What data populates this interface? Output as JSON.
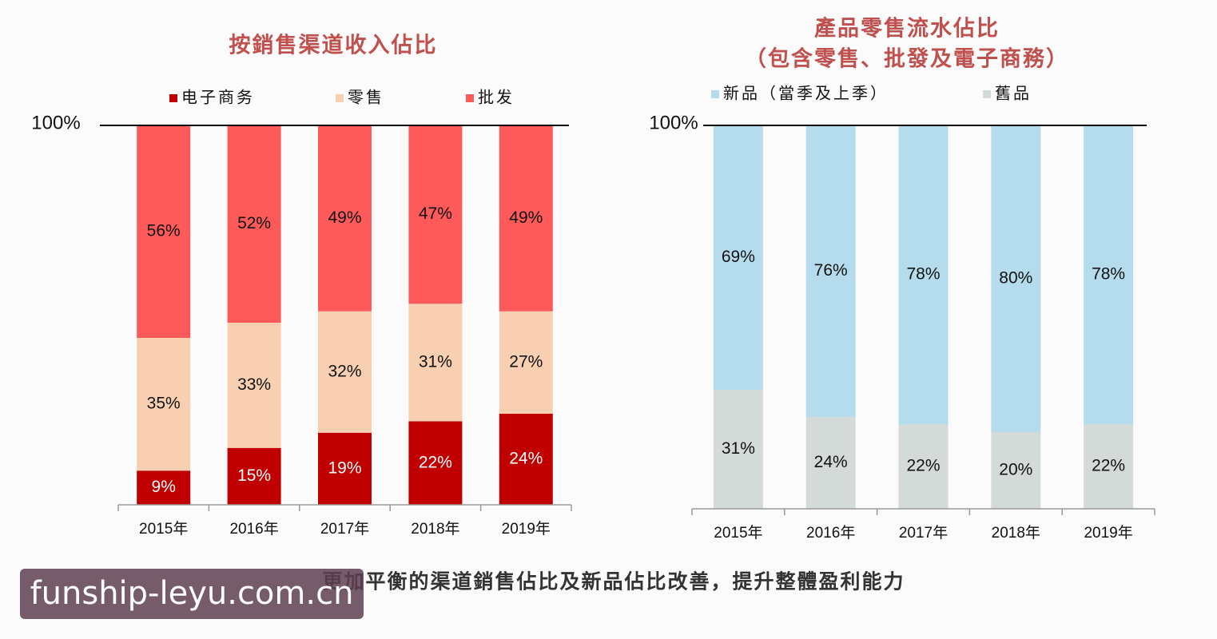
{
  "chart_data": [
    {
      "type": "stacked_bar",
      "title": "按銷售渠道收入佔比",
      "categories": [
        "2015年",
        "2016年",
        "2017年",
        "2018年",
        "2019年"
      ],
      "series": [
        {
          "name": "电子商务",
          "color": "#c00000",
          "values": [
            9,
            15,
            19,
            22,
            24
          ],
          "value_labels": [
            "9%",
            "15%",
            "19%",
            "22%",
            "24%"
          ]
        },
        {
          "name": "零售",
          "color": "#f8d0b1",
          "values": [
            35,
            33,
            32,
            31,
            27
          ],
          "value_labels": [
            "35%",
            "33%",
            "32%",
            "31%",
            "27%"
          ]
        },
        {
          "name": "批发",
          "color": "#ff5a5a",
          "values": [
            56,
            52,
            49,
            47,
            49
          ],
          "value_labels": [
            "56%",
            "52%",
            "49%",
            "47%",
            "49%"
          ]
        }
      ],
      "ylim": [
        0,
        100
      ],
      "yticks": [
        {
          "value": 100,
          "label": "100%"
        }
      ]
    },
    {
      "type": "stacked_bar",
      "title": "產品零售流水佔比",
      "subtitle": "（包含零售、批發及電子商務）",
      "categories": [
        "2015年",
        "2016年",
        "2017年",
        "2018年",
        "2019年"
      ],
      "series": [
        {
          "name": "舊品",
          "color": "#d4dad8",
          "values": [
            31,
            24,
            22,
            20,
            22
          ],
          "value_labels": [
            "31%",
            "24%",
            "22%",
            "20%",
            "22%"
          ]
        },
        {
          "name": "新品（當季及上季）",
          "color": "#b4dcec",
          "values": [
            69,
            76,
            78,
            80,
            78
          ],
          "value_labels": [
            "69%",
            "76%",
            "78%",
            "80%",
            "78%"
          ]
        }
      ],
      "ylim": [
        0,
        100
      ],
      "yticks": [
        {
          "value": 100,
          "label": "100%"
        }
      ]
    }
  ],
  "caption": "更加平衡的渠道銷售佔比及新品佔比改善，提升整體盈利能力",
  "watermark": "funship-leyu.com.cn"
}
